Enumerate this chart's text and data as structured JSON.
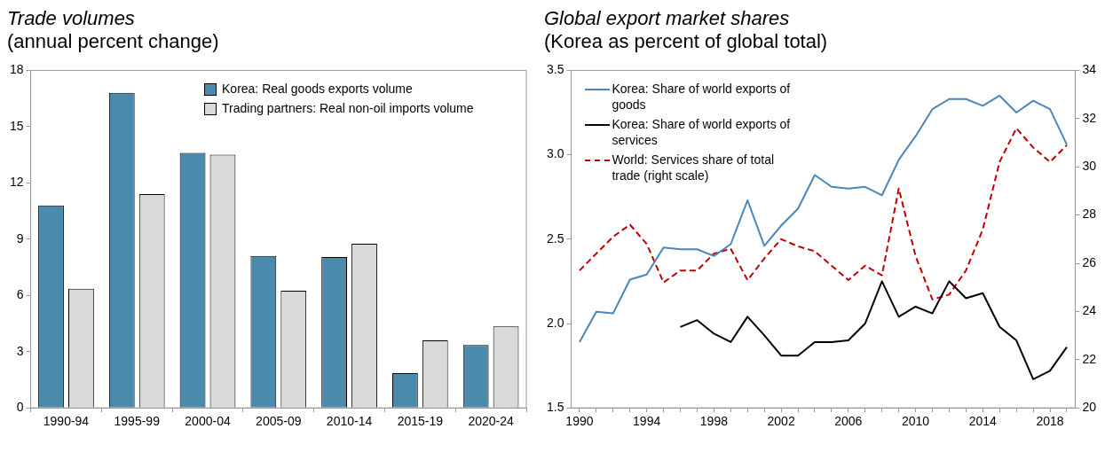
{
  "chart_data": [
    {
      "type": "bar",
      "title": "Trade volumes",
      "subtitle": "(annual percent change)",
      "categories": [
        "1990-94",
        "1995-99",
        "2000-04",
        "2005-09",
        "2010-14",
        "2015-19",
        "2020-24"
      ],
      "series": [
        {
          "name": "Korea: Real goods exports volume",
          "color": "#4a8aad",
          "values": [
            10.8,
            16.8,
            13.6,
            8.1,
            8.05,
            1.85,
            3.35
          ]
        },
        {
          "name": "Trading partners: Real non-oil imports volume",
          "color": "#d9d9d9",
          "values": [
            6.35,
            11.4,
            13.5,
            6.25,
            8.75,
            3.6,
            4.35
          ]
        }
      ],
      "ylim": [
        0,
        18
      ],
      "yticks": [
        0,
        3,
        6,
        9,
        12,
        15,
        18
      ],
      "grid": false,
      "legend": "top right"
    },
    {
      "type": "line",
      "title": "Global export market shares",
      "subtitle": "(Korea as percent of global total)",
      "x": [
        1990,
        1991,
        1992,
        1993,
        1994,
        1995,
        1996,
        1997,
        1998,
        1999,
        2000,
        2001,
        2002,
        2003,
        2004,
        2005,
        2006,
        2007,
        2008,
        2009,
        2010,
        2011,
        2012,
        2013,
        2014,
        2015,
        2016,
        2017,
        2018,
        2019
      ],
      "series": [
        {
          "name": "Korea: Share of world exports of goods",
          "color": "#4a86b8",
          "values": [
            1.89,
            2.07,
            2.06,
            2.26,
            2.29,
            2.45,
            2.44,
            2.44,
            2.4,
            2.47,
            2.73,
            2.46,
            2.58,
            2.68,
            2.88,
            2.81,
            2.8,
            2.81,
            2.76,
            2.97,
            3.11,
            3.27,
            3.33,
            3.33,
            3.29,
            3.35,
            3.25,
            3.32,
            3.27,
            3.06
          ]
        },
        {
          "name": "Korea: Share of world exports of services",
          "color": "#000000",
          "values": [
            null,
            null,
            null,
            null,
            null,
            null,
            1.98,
            2.02,
            1.94,
            1.89,
            2.04,
            1.93,
            1.81,
            1.81,
            1.89,
            1.89,
            1.9,
            2.0,
            2.25,
            2.04,
            2.1,
            2.06,
            2.25,
            2.15,
            2.18,
            1.98,
            1.9,
            1.67,
            1.72,
            1.86
          ]
        },
        {
          "name": "World: Services share of total trade (right scale)",
          "color": "#c00000",
          "axis": "y2",
          "line_style": "dashed",
          "values": [
            25.7,
            26.4,
            27.1,
            27.6,
            26.8,
            25.2,
            25.7,
            25.7,
            26.4,
            26.6,
            25.3,
            26.2,
            27.0,
            26.7,
            26.5,
            25.9,
            25.3,
            25.9,
            25.5,
            29.1,
            26.3,
            24.5,
            24.7,
            25.7,
            27.4,
            30.2,
            31.6,
            30.8,
            30.2,
            30.9
          ]
        }
      ],
      "xlim": [
        1989.5,
        2019.5
      ],
      "xticks": [
        1990,
        {
          "value": 1991,
          "label": null
        },
        {
          "value": 1992,
          "label": null
        },
        {
          "value": 1993,
          "label": null
        },
        1994,
        {
          "value": 1995,
          "label": null
        },
        {
          "value": 1996,
          "label": null
        },
        {
          "value": 1997,
          "label": null
        },
        1998,
        {
          "value": 1999,
          "label": null
        },
        {
          "value": 2000,
          "label": null
        },
        {
          "value": 2001,
          "label": null
        },
        2002,
        {
          "value": 2003,
          "label": null
        },
        {
          "value": 2004,
          "label": null
        },
        {
          "value": 2005,
          "label": null
        },
        2006,
        {
          "value": 2007,
          "label": null
        },
        {
          "value": 2008,
          "label": null
        },
        {
          "value": 2009,
          "label": null
        },
        2010,
        {
          "value": 2011,
          "label": null
        },
        {
          "value": 2012,
          "label": null
        },
        {
          "value": 2013,
          "label": null
        },
        2014,
        {
          "value": 2015,
          "label": null
        },
        {
          "value": 2016,
          "label": null
        },
        {
          "value": 2017,
          "label": null
        },
        2018,
        {
          "value": 2019,
          "label": null
        }
      ],
      "ylim": [
        1.5,
        3.5
      ],
      "yticks": [
        1.5,
        {
          "value": 2,
          "label": "2.0"
        },
        2.5,
        {
          "value": 3,
          "label": "3.0"
        },
        3.5
      ],
      "y2lim": [
        20,
        34
      ],
      "y2ticks": [
        20,
        22,
        24,
        26,
        28,
        30,
        32,
        34
      ],
      "grid": false,
      "legend": "top left",
      "marker": "none",
      "line_style": "solid"
    }
  ]
}
